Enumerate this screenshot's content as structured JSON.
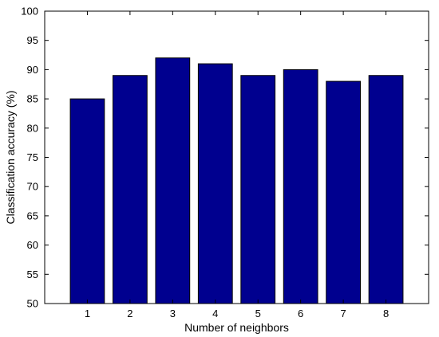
{
  "chart_data": {
    "type": "bar",
    "title": "",
    "xlabel": "Number of neighbors",
    "ylabel": "Classification accuracy (%)",
    "categories": [
      "1",
      "2",
      "3",
      "4",
      "5",
      "6",
      "7",
      "8"
    ],
    "values": [
      85,
      89,
      92,
      91,
      89,
      90,
      88,
      89
    ],
    "ylim": [
      50,
      100
    ],
    "yticks": [
      50,
      55,
      60,
      65,
      70,
      75,
      80,
      85,
      90,
      95,
      100
    ],
    "grid": false,
    "legend": "none",
    "bar_color": "#00008f",
    "bar_edge_color": "#000000"
  }
}
